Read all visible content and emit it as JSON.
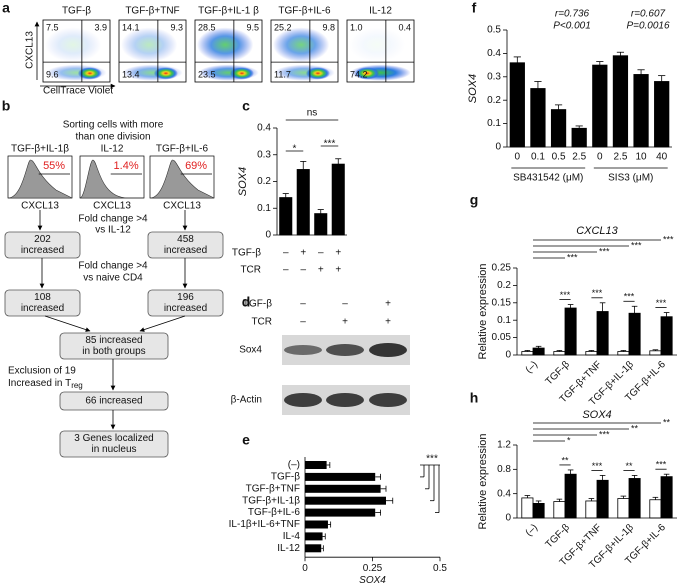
{
  "flow_a": {
    "panel": "a",
    "y_label": "CXCL13",
    "x_label": "CellTrace Violet",
    "plots": [
      {
        "title": "TGF-β",
        "tl": "7.5",
        "tr": "3.9",
        "bl": "9.6"
      },
      {
        "title": "TGF-β+TNF",
        "tl": "14.1",
        "tr": "9.3",
        "bl": "13.4"
      },
      {
        "title": "TGF-β+IL-1 β",
        "tl": "28.5",
        "tr": "9.5",
        "bl": "23.5"
      },
      {
        "title": "TGF-β+IL-6",
        "tl": "25.2",
        "tr": "9.8",
        "bl": "11.7"
      },
      {
        "title": "IL-12",
        "tl": "1.0",
        "tr": "0.4",
        "bl": "74.2"
      }
    ]
  },
  "scheme_b": {
    "panel": "b",
    "title": [
      "Sorting cells with more",
      "than one division"
    ],
    "histograms": [
      {
        "title": "TGF-β+IL-1β",
        "percent": "55%"
      },
      {
        "title": "IL-12",
        "percent": "1.4%"
      },
      {
        "title": "TGF-β+IL-6",
        "percent": "69%"
      }
    ],
    "x_label": "CXCL13",
    "steps": {
      "fold_il12": [
        "Fold change >4",
        "vs IL-12"
      ],
      "fold_naive": [
        "Fold change >4",
        "vs naive CD4"
      ],
      "exclusion": [
        "Exclusion of 19",
        "Increased in T",
        "reg"
      ]
    },
    "boxes": [
      [
        "202",
        "increased"
      ],
      [
        "458",
        "increased"
      ],
      [
        "108",
        "increased"
      ],
      [
        "196",
        "increased"
      ],
      [
        "85 increased",
        "in both groups"
      ],
      [
        "66 increased"
      ],
      [
        "3 Genes localized",
        "in nucleus"
      ]
    ]
  },
  "blot_d": {
    "panel": "d",
    "conditions": [
      {
        "name": "TGF-β",
        "signs": [
          "–",
          "–",
          "+"
        ]
      },
      {
        "name": "TCR",
        "signs": [
          "–",
          "+",
          "+"
        ]
      }
    ],
    "bands": [
      "Sox4",
      "β-Actin"
    ]
  },
  "chart_data": [
    {
      "panel": "c",
      "type": "bar",
      "ylabel": "SOX4",
      "values": [
        0.14,
        0.245,
        0.08,
        0.265
      ],
      "errors": [
        0.015,
        0.03,
        0.015,
        0.02
      ],
      "color": "#000000",
      "ylim": [
        0,
        0.4
      ],
      "yticks": [
        0,
        0.1,
        0.2,
        0.3,
        0.4
      ],
      "conditions": [
        {
          "name": "TGF-β",
          "signs": [
            "–",
            "+",
            "–",
            "+"
          ]
        },
        {
          "name": "TCR",
          "signs": [
            "–",
            "–",
            "+",
            "+"
          ]
        }
      ],
      "significance": [
        "ns",
        "*",
        "***"
      ]
    },
    {
      "panel": "e",
      "type": "barh",
      "xlabel": "SOX4",
      "categories": [
        "(–)",
        "TGF-β",
        "TGF-β+TNF",
        "TGF-β+IL-1β",
        "TGF-β+IL-6",
        "IL-1β+IL-6+TNF",
        "IL-4",
        "IL-12"
      ],
      "values": [
        0.08,
        0.26,
        0.28,
        0.3,
        0.26,
        0.085,
        0.065,
        0.06
      ],
      "errors": [
        0.012,
        0.02,
        0.02,
        0.025,
        0.02,
        0.01,
        0.01,
        0.008
      ],
      "color": "#000000",
      "xlim": [
        0,
        0.5
      ],
      "xticks": [
        0,
        0.25,
        0.5
      ],
      "significance": [
        "***"
      ]
    },
    {
      "panel": "f",
      "type": "bar",
      "ylabel": "SOX4",
      "categories": [
        "0",
        "0.1",
        "0.5",
        "2.5",
        "0",
        "2.5",
        "10",
        "40"
      ],
      "values": [
        0.36,
        0.25,
        0.16,
        0.08,
        0.35,
        0.39,
        0.31,
        0.28
      ],
      "errors": [
        0.025,
        0.03,
        0.02,
        0.01,
        0.015,
        0.015,
        0.02,
        0.025
      ],
      "color": "#000000",
      "ylim": [
        0,
        0.5
      ],
      "yticks": [
        0,
        0.1,
        0.2,
        0.3,
        0.4,
        0.5
      ],
      "groups": [
        "SB431542 (μM)",
        "SIS3 (μM)"
      ],
      "annotations": [
        "r=0.736",
        "P<0.001",
        "r=0.607",
        "P=0.0016"
      ]
    },
    {
      "panel": "g",
      "type": "bar",
      "title": "CXCL13",
      "ylabel": "Relative expression",
      "categories": [
        "(–)",
        "TGF-β",
        "TGF-β+TNF",
        "TGF-β+IL-1β",
        "TGF-β+IL-6"
      ],
      "series": [
        {
          "color": "#ffffff",
          "values": [
            0.01,
            0.01,
            0.01,
            0.01,
            0.012
          ],
          "errors": [
            0.003,
            0.003,
            0.003,
            0.003,
            0.003
          ]
        },
        {
          "color": "#000000",
          "values": [
            0.02,
            0.135,
            0.125,
            0.12,
            0.11
          ],
          "errors": [
            0.005,
            0.01,
            0.025,
            0.02,
            0.012
          ]
        }
      ],
      "ylim": [
        0,
        0.25
      ],
      "yticks": [
        0,
        0.05,
        0.1,
        0.15,
        0.2,
        0.25
      ],
      "significance": [
        "***",
        "***",
        "***",
        "***",
        "***",
        "***",
        "***",
        "***"
      ]
    },
    {
      "panel": "h",
      "type": "bar",
      "title": "SOX4",
      "ylabel": "Relative expression",
      "categories": [
        "(–)",
        "TGF-β",
        "TGF-β+TNF",
        "TGF-β+IL-1β",
        "TGF-β+IL-6"
      ],
      "series": [
        {
          "color": "#ffffff",
          "values": [
            0.33,
            0.27,
            0.28,
            0.32,
            0.3
          ],
          "errors": [
            0.04,
            0.04,
            0.04,
            0.04,
            0.04
          ]
        },
        {
          "color": "#000000",
          "values": [
            0.24,
            0.72,
            0.62,
            0.65,
            0.68
          ],
          "errors": [
            0.04,
            0.07,
            0.08,
            0.05,
            0.04
          ]
        }
      ],
      "ylim": [
        0,
        1.2
      ],
      "yticks": [
        0,
        0.4,
        0.8,
        1.2
      ],
      "significance": [
        "**",
        "**",
        "***",
        "*",
        "**",
        "***",
        "**",
        "***"
      ]
    }
  ]
}
